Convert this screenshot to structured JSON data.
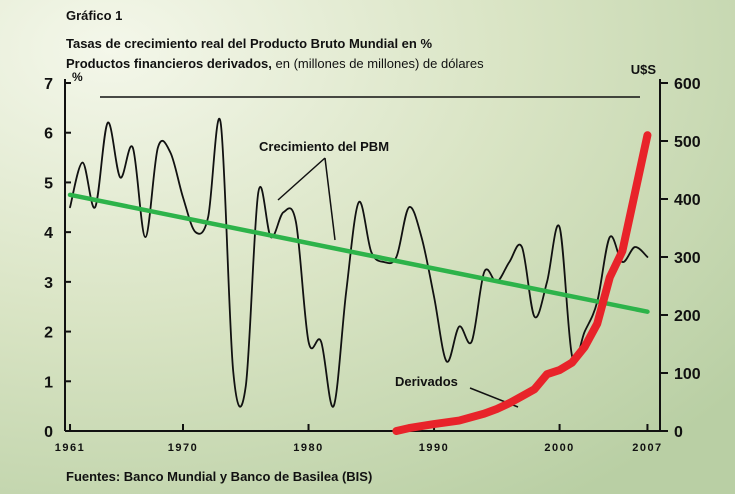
{
  "chart_data": {
    "type": "line",
    "title": "Gráfico 1",
    "subtitle": "Tasas de crecimiento real del Producto Bruto Mundial en %",
    "subtitle2_bold": "Productos financieros derivados,",
    "subtitle2_rest": " en (millones de millones) de dólares",
    "ylabel": "%",
    "y2label": "U$S",
    "source": "Fuentes: Banco Mundial y Banco de Basilea (BIS)",
    "xlim": [
      1960.6,
      2008
    ],
    "xticks": [
      1961,
      1970,
      1980,
      1990,
      2000,
      2007
    ],
    "ylim": [
      0,
      7
    ],
    "yticks": [
      0,
      1,
      2,
      3,
      4,
      5,
      6,
      7
    ],
    "y2lim": [
      0,
      600
    ],
    "y2ticks": [
      0,
      100,
      200,
      300,
      400,
      500,
      600
    ],
    "series": [
      {
        "name": "Crecimiento del PBM",
        "color": "#111111",
        "x": [
          1961,
          1962,
          1963,
          1964,
          1965,
          1966,
          1967,
          1968,
          1969,
          1970,
          1971,
          1972,
          1973,
          1974,
          1975,
          1976,
          1977,
          1978,
          1979,
          1980,
          1981,
          1982,
          1983,
          1984,
          1985,
          1986,
          1987,
          1988,
          1989,
          1990,
          1991,
          1992,
          1993,
          1994,
          1995,
          1996,
          1997,
          1998,
          1999,
          2000,
          2001,
          2002,
          2003,
          2004,
          2005,
          2006,
          2007
        ],
        "values": [
          4.5,
          5.4,
          4.5,
          6.2,
          5.1,
          5.7,
          3.9,
          5.7,
          5.6,
          4.7,
          4.0,
          4.3,
          6.2,
          1.2,
          0.9,
          4.8,
          3.9,
          4.4,
          4.2,
          1.8,
          1.8,
          0.5,
          2.8,
          4.6,
          3.6,
          3.4,
          3.5,
          4.5,
          3.9,
          2.7,
          1.4,
          2.1,
          1.8,
          3.2,
          3.0,
          3.4,
          3.7,
          2.3,
          3.0,
          4.1,
          1.5,
          2.0,
          2.6,
          3.9,
          3.4,
          3.7,
          3.5
        ]
      },
      {
        "color": "#2db34a",
        "x": [
          1961,
          2007
        ],
        "values": [
          4.75,
          2.4
        ]
      },
      {
        "name": "Derivados",
        "color": "#e8232a",
        "axis": "y2",
        "x": [
          1987,
          1988,
          1990,
          1992,
          1994,
          1995,
          1996,
          1997,
          1998,
          1999,
          2000,
          2001,
          2002,
          2003,
          2004,
          2005,
          2006,
          2007
        ],
        "values": [
          0,
          5,
          12,
          18,
          30,
          38,
          48,
          60,
          72,
          98,
          105,
          118,
          145,
          185,
          265,
          310,
          410,
          510
        ]
      }
    ]
  }
}
